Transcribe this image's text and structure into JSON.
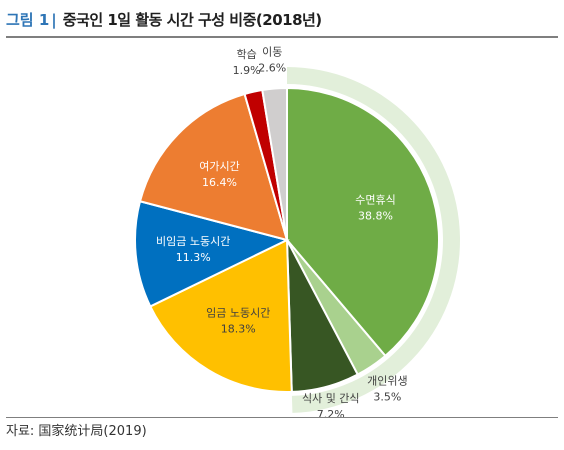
{
  "title": {
    "figure_number": "그림 1",
    "text": "중국인 1일 활동 시간 구성 비중(2018년)"
  },
  "source": "자료: 国家统计局(2019)",
  "chart_data": {
    "type": "pie",
    "title": "중국인 1일 활동 시간 구성 비중(2018년)",
    "unit": "%",
    "slices": [
      {
        "label": "수면휴식",
        "value": 38.8,
        "value_text": "38.8%",
        "color": "#6fac46"
      },
      {
        "label": "개인위생",
        "value": 3.5,
        "value_text": "3.5%",
        "color": "#a9d18e"
      },
      {
        "label": "식사 및 간식",
        "value": 7.2,
        "value_text": "7.2%",
        "color": "#375623"
      },
      {
        "label": "임금 노동시간",
        "value": 18.3,
        "value_text": "18.3%",
        "color": "#ffc000"
      },
      {
        "label": "비임금 노동시간",
        "value": 11.3,
        "value_text": "11.3%",
        "color": "#0070c0"
      },
      {
        "label": "여가시간",
        "value": 16.4,
        "value_text": "16.4%",
        "color": "#ed7d31"
      },
      {
        "label": "학습",
        "value": 1.9,
        "value_text": "1.9%",
        "color": "#c00000"
      },
      {
        "label": "이동",
        "value": 2.6,
        "value_text": "2.6%",
        "color": "#d0cece"
      }
    ],
    "highlight": {
      "from_slice": 0,
      "to_slice": 2,
      "color": "#e2efda"
    }
  }
}
